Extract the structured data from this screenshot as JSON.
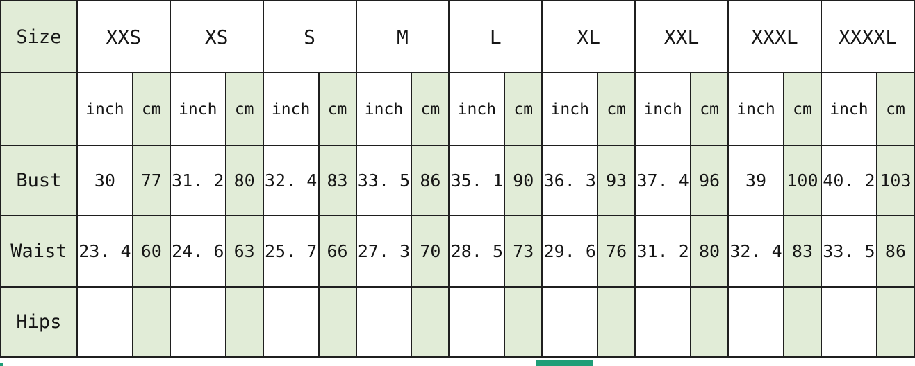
{
  "table": {
    "corner_label": "Size",
    "sizes": [
      "XXS",
      "XS",
      "S",
      "M",
      "L",
      "XL",
      "XXL",
      "XXXL",
      "XXXXL"
    ],
    "units": {
      "inch": "inch",
      "cm": "cm"
    },
    "measurement_rows": [
      {
        "label": "Bust",
        "display": [
          "30",
          "77",
          "31. 2",
          "80",
          "32. 4",
          "83",
          "33. 5",
          "86",
          "35. 1",
          "90",
          "36. 3",
          "93",
          "37. 4",
          "96",
          "39",
          "100",
          "40. 2",
          "103"
        ]
      },
      {
        "label": "Waist",
        "display": [
          "23. 4",
          "60",
          "24. 6",
          "63",
          "25. 7",
          "66",
          "27. 3",
          "70",
          "28. 5",
          "73",
          "29. 6",
          "76",
          "31. 2",
          "80",
          "32. 4",
          "83",
          "33. 5",
          "86"
        ]
      },
      {
        "label": "Hips",
        "display": [
          "",
          "",
          "",
          "",
          "",
          "",
          "",
          "",
          "",
          "",
          "",
          "",
          "",
          "",
          "",
          "",
          "",
          ""
        ]
      }
    ]
  },
  "chart_data": {
    "type": "table",
    "title": "",
    "columns": [
      "Size",
      "XXS inch",
      "XXS cm",
      "XS inch",
      "XS cm",
      "S inch",
      "S cm",
      "M inch",
      "M cm",
      "L inch",
      "L cm",
      "XL inch",
      "XL cm",
      "XXL inch",
      "XXL cm",
      "XXXL inch",
      "XXXL cm",
      "XXXXL inch",
      "XXXXL cm"
    ],
    "rows": [
      {
        "label": "Bust",
        "inch": [
          30,
          31.2,
          32.4,
          33.5,
          35.1,
          36.3,
          37.4,
          39,
          40.2
        ],
        "cm": [
          77,
          80,
          83,
          86,
          90,
          93,
          96,
          100,
          103
        ]
      },
      {
        "label": "Waist",
        "inch": [
          23.4,
          24.6,
          25.7,
          27.3,
          28.5,
          29.6,
          31.2,
          32.4,
          33.5
        ],
        "cm": [
          60,
          63,
          66,
          70,
          73,
          76,
          80,
          83,
          86
        ]
      },
      {
        "label": "Hips",
        "inch": [],
        "cm": []
      }
    ]
  },
  "colors": {
    "cell_green": "#e1ecd7",
    "border": "#1f1f1f",
    "teal_accent": "#1f9e78",
    "background": "#ffffff"
  }
}
